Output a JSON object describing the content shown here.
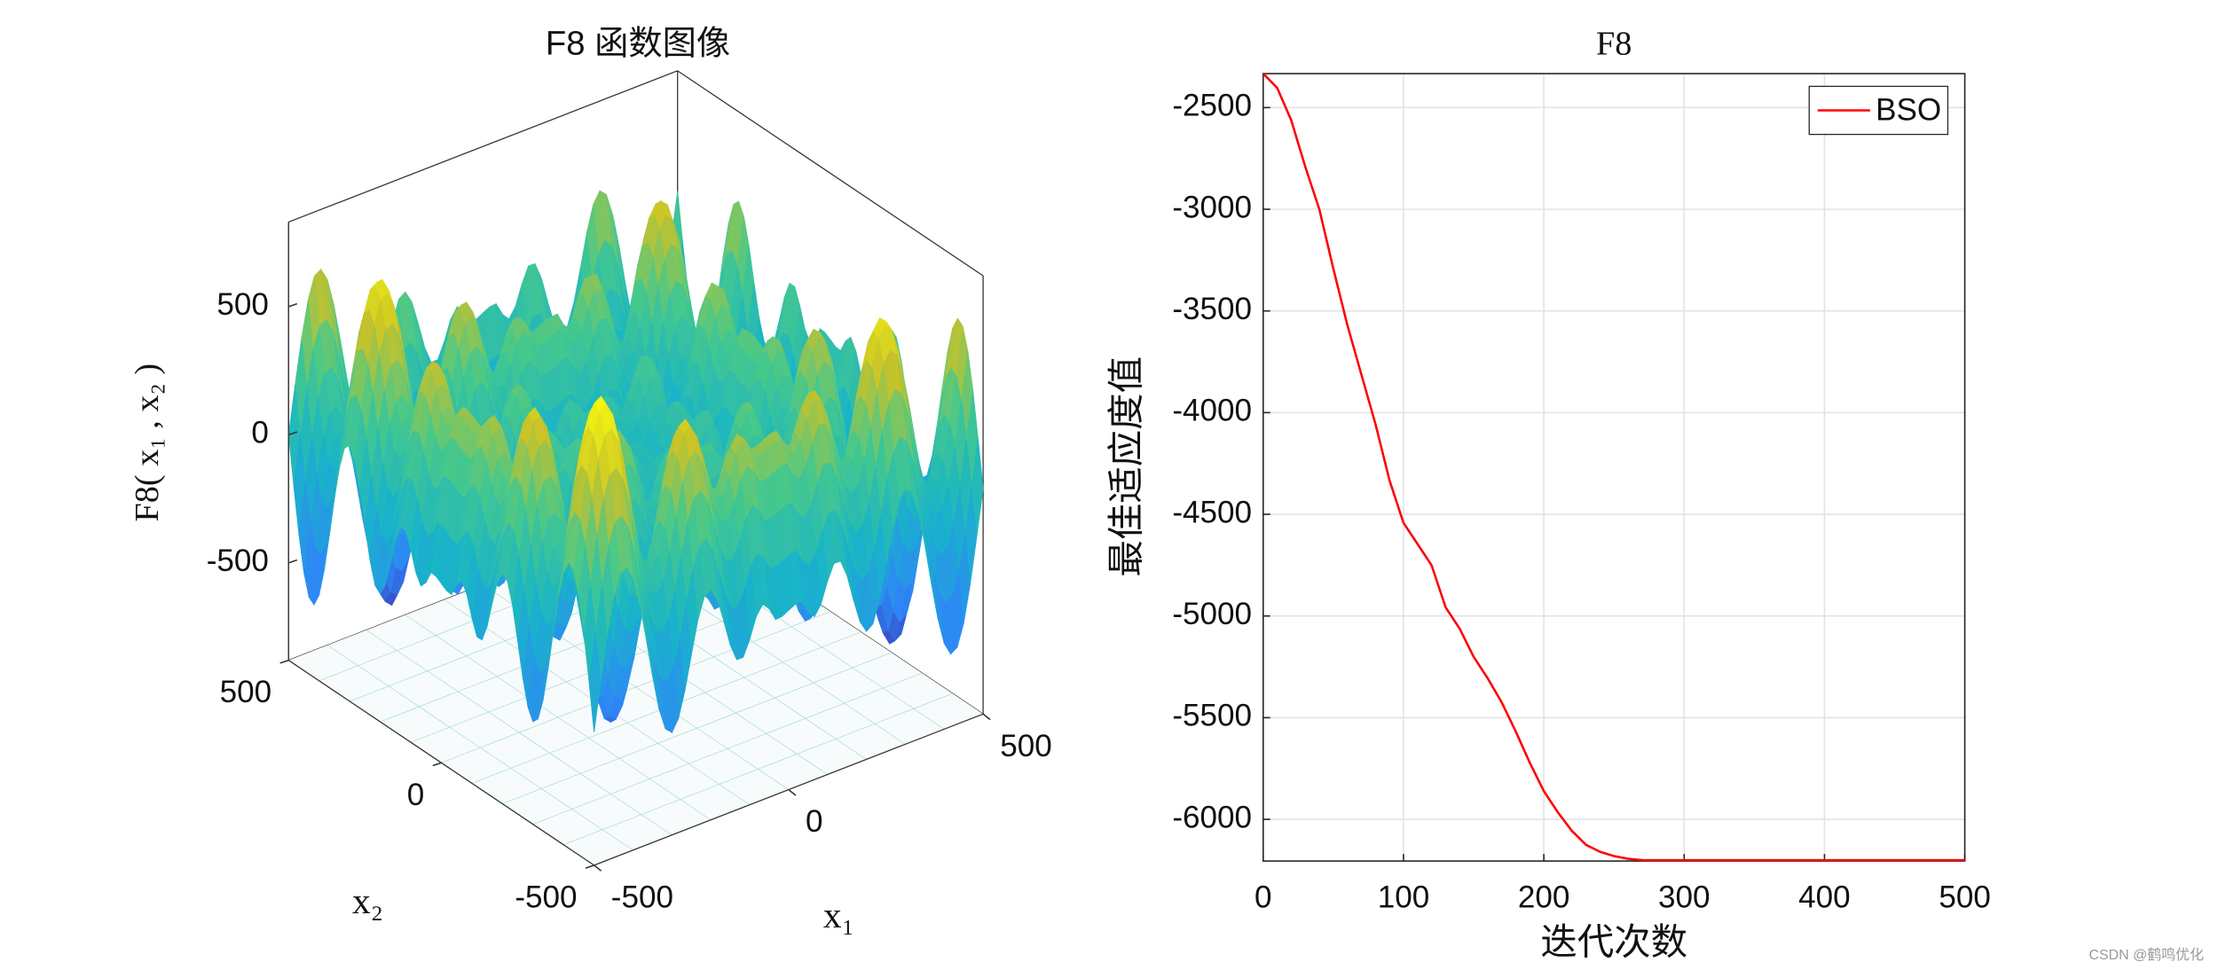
{
  "chart_data": [
    {
      "type": "surface",
      "title": "F8 函数图像",
      "xlabel": "x₁",
      "ylabel": "x₂",
      "zlabel": "F8( x₁ , x₂ )",
      "xlim": [
        -500,
        500
      ],
      "ylim": [
        -500,
        500
      ],
      "zlim": [
        -880,
        830
      ],
      "xticks": [
        -500,
        0,
        500
      ],
      "yticks": [
        -500,
        0,
        500
      ],
      "zticks": [
        -500,
        0,
        500
      ]
    },
    {
      "type": "line",
      "title": "F8",
      "xlabel": "迭代次数",
      "ylabel": "最佳适应度值",
      "x": [
        0,
        10,
        20,
        30,
        40,
        50,
        60,
        70,
        80,
        90,
        100,
        110,
        120,
        130,
        140,
        150,
        160,
        170,
        180,
        190,
        200,
        210,
        220,
        230,
        240,
        250,
        260,
        270,
        280,
        290,
        300,
        350,
        400,
        450,
        500
      ],
      "series": [
        {
          "name": "BSO",
          "color": "#ff0000",
          "values": [
            -2333,
            -2403,
            -2562,
            -2792,
            -3000,
            -3292,
            -3569,
            -3812,
            -4056,
            -4333,
            -4542,
            -4646,
            -4750,
            -4958,
            -5062,
            -5201,
            -5306,
            -5424,
            -5569,
            -5722,
            -5861,
            -5965,
            -6056,
            -6125,
            -6160,
            -6181,
            -6194,
            -6200,
            -6201,
            -6201,
            -6201,
            -6201,
            -6201,
            -6201,
            -6201
          ]
        }
      ],
      "xlim": [
        0,
        500
      ],
      "ylim": [
        -6205,
        -2333
      ],
      "xticks": [
        0,
        100,
        200,
        300,
        400,
        500
      ],
      "yticks": [
        -6000,
        -5500,
        -5000,
        -4500,
        -4000,
        -3500,
        -3000,
        -2500
      ],
      "grid": true,
      "legend": "upper right"
    }
  ]
}
